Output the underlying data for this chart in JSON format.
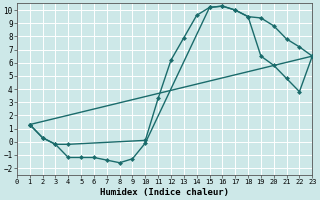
{
  "xlabel": "Humidex (Indice chaleur)",
  "xlim": [
    0,
    23
  ],
  "ylim": [
    -2.5,
    10.5
  ],
  "xticks": [
    0,
    1,
    2,
    3,
    4,
    5,
    6,
    7,
    8,
    9,
    10,
    11,
    12,
    13,
    14,
    15,
    16,
    17,
    18,
    19,
    20,
    21,
    22,
    23
  ],
  "yticks": [
    -2,
    -1,
    0,
    1,
    2,
    3,
    4,
    5,
    6,
    7,
    8,
    9,
    10
  ],
  "bg_color": "#cde8e8",
  "grid_color": "#b0d4d4",
  "line_color": "#1a6b6b",
  "curve1_x": [
    1,
    2,
    3,
    4,
    10,
    11,
    12,
    13,
    14,
    15,
    16,
    17,
    18,
    19,
    20,
    21,
    22,
    23
  ],
  "curve1_y": [
    1.3,
    0.3,
    -0.2,
    -0.2,
    0.1,
    3.3,
    6.2,
    7.9,
    9.6,
    10.2,
    10.3,
    10.0,
    9.5,
    9.4,
    8.8,
    7.8,
    7.2,
    6.5
  ],
  "curve2_x": [
    1,
    2,
    3,
    4,
    5,
    6,
    7,
    8,
    9,
    10,
    15,
    16,
    17,
    18,
    19,
    20,
    21,
    22,
    23
  ],
  "curve2_y": [
    1.3,
    0.3,
    -0.2,
    -1.2,
    -1.2,
    -1.2,
    -1.4,
    -1.6,
    -1.3,
    -0.1,
    10.2,
    10.3,
    10.0,
    9.5,
    6.5,
    5.8,
    4.8,
    3.8,
    6.5
  ],
  "curve3_x": [
    1,
    23
  ],
  "curve3_y": [
    1.3,
    6.5
  ],
  "markersize": 2.5,
  "linewidth": 1.0
}
